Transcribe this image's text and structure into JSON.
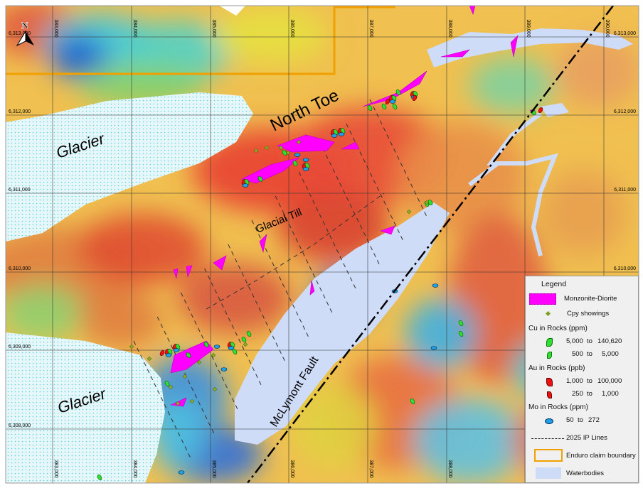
{
  "map": {
    "labels": {
      "north_toe": "North Toe",
      "glacier_1": "Glacier",
      "glacier_2": "Glacier",
      "glacial_till": "Glacial Till",
      "fault": "McLymont Fault"
    },
    "north_arrow": "N",
    "eastings": [
      "383,000",
      "384,000",
      "385,000",
      "386,000",
      "387,000",
      "388,000",
      "389,000",
      "390,000"
    ],
    "northings": [
      "6,313,000",
      "6,312,000",
      "6,311,000",
      "6,310,000",
      "6,309,000",
      "6,308,000"
    ],
    "colors": {
      "monzonite": "#ff00ff",
      "cu": "#33cc33",
      "au": "#ff0000",
      "mo": "#1ea0e6",
      "claim": "#f0a000",
      "water": "#cfdcf8",
      "glacier": "#dff4f8"
    }
  },
  "legend": {
    "title": "Legend",
    "monzonite": "Monzonite-Diorite",
    "cpy": "Cpy showings",
    "cu_title": "Cu in Rocks (ppm)",
    "cu_rows": [
      {
        "from": "5,000",
        "to": "140,620"
      },
      {
        "from": "500",
        "to": "5,000"
      }
    ],
    "au_title": "Au in Rocks (ppb)",
    "au_rows": [
      {
        "from": "1,000",
        "to": "100,000"
      },
      {
        "from": "250",
        "to": "1,000"
      }
    ],
    "mo_title": "Mo in Rocks (ppm)",
    "mo_rows": [
      {
        "from": "50",
        "to": "272"
      }
    ],
    "to_word": "to",
    "ip_lines": "2025 IP Lines",
    "claim": "Enduro claim boundary",
    "water": "Waterbodies"
  }
}
